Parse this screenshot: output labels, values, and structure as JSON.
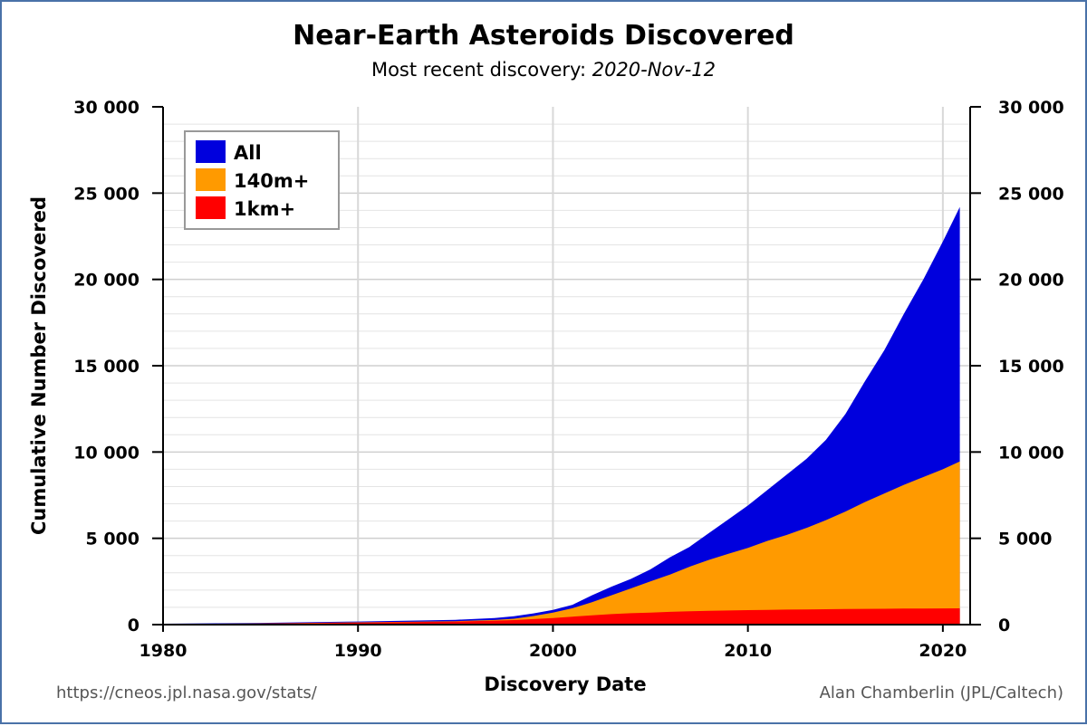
{
  "chart_data": {
    "type": "area",
    "title": "Near-Earth Asteroids Discovered",
    "subtitle_prefix": "Most recent discovery: ",
    "subtitle_date": "2020-Nov-12",
    "xlabel": "Discovery Date",
    "ylabel": "Cumulative Number Discovered",
    "xlim": [
      1980,
      2021.4
    ],
    "ylim": [
      0,
      30000
    ],
    "x_ticks": [
      1980,
      1990,
      2000,
      2010,
      2020
    ],
    "y_ticks": [
      0,
      5000,
      10000,
      15000,
      20000,
      25000,
      30000
    ],
    "y_tick_labels": [
      "0",
      "5 000",
      "10 000",
      "15 000",
      "20 000",
      "25 000",
      "30 000"
    ],
    "grid": true,
    "legend_position": "top-left",
    "x": [
      1980,
      1985,
      1990,
      1995,
      1997,
      1998,
      1999,
      2000,
      2001,
      2002,
      2003,
      2004,
      2005,
      2006,
      2007,
      2008,
      2009,
      2010,
      2011,
      2012,
      2013,
      2014,
      2015,
      2016,
      2017,
      2018,
      2019,
      2020,
      2020.87
    ],
    "series": [
      {
        "name": "All",
        "color": "#0000dd",
        "values": [
          50,
          100,
          180,
          280,
          380,
          480,
          650,
          850,
          1150,
          1700,
          2200,
          2650,
          3200,
          3900,
          4500,
          5300,
          6100,
          6900,
          7800,
          8700,
          9600,
          10700,
          12200,
          14100,
          15900,
          18000,
          20000,
          22200,
          24200
        ]
      },
      {
        "name": "140m+",
        "color": "#ff9a00",
        "values": [
          30,
          70,
          130,
          200,
          270,
          340,
          500,
          700,
          950,
          1300,
          1700,
          2100,
          2500,
          2900,
          3350,
          3750,
          4100,
          4450,
          4850,
          5200,
          5600,
          6050,
          6550,
          7100,
          7600,
          8100,
          8550,
          9000,
          9450
        ]
      },
      {
        "name": "1km+",
        "color": "#ff0000",
        "values": [
          20,
          60,
          110,
          180,
          230,
          260,
          320,
          380,
          460,
          540,
          610,
          660,
          700,
          740,
          770,
          800,
          820,
          840,
          855,
          870,
          880,
          890,
          900,
          910,
          920,
          930,
          935,
          940,
          945
        ]
      }
    ]
  },
  "credits": {
    "source_url": "https://cneos.jpl.nasa.gov/stats/",
    "author": "Alan Chamberlin (JPL/Caltech)"
  }
}
